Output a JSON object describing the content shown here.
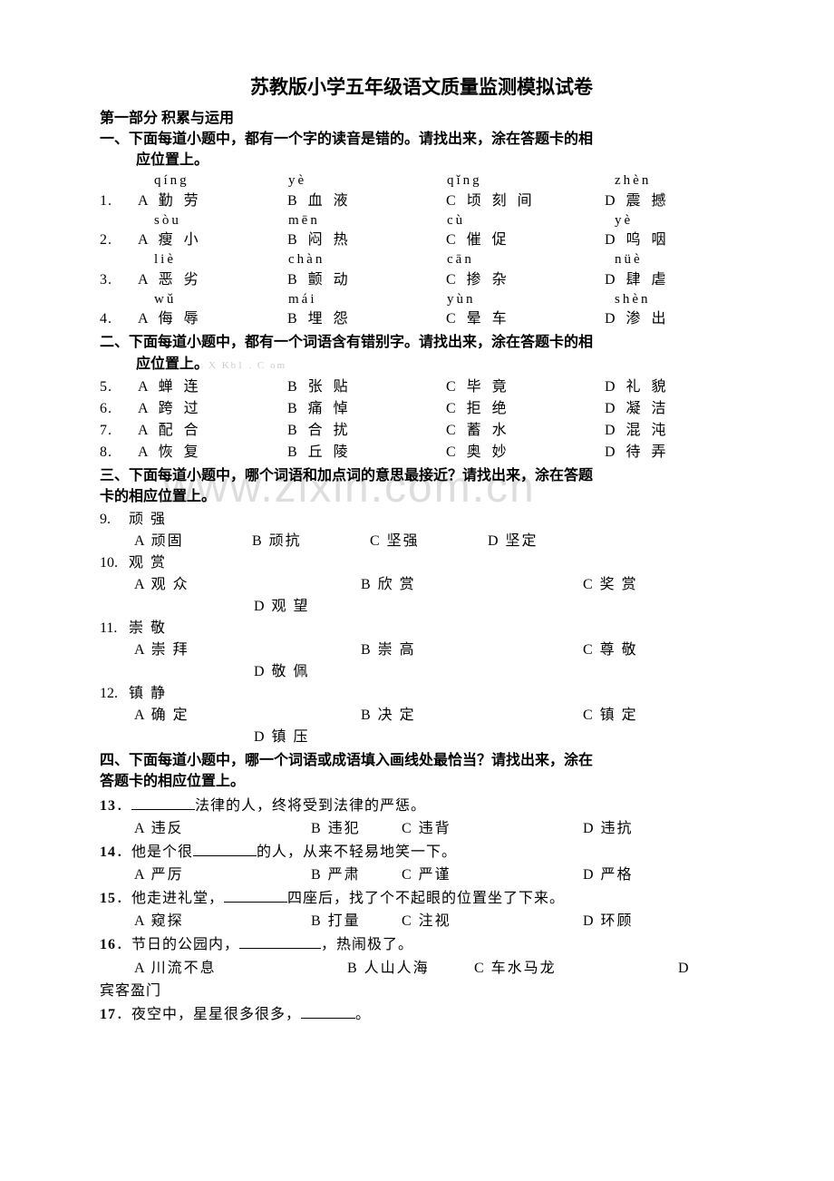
{
  "title": "苏教版小学五年级语文质量监测模拟试卷",
  "part1": "第一部分 积累与运用",
  "s1": {
    "instr_a": "一、下面每道小题中，都有一个字的读音是错的。请找出来，涂在答题卡的相",
    "instr_b": "应位置上。",
    "rows": [
      {
        "num": "1.",
        "p": [
          "qíng",
          "yè",
          "qǐng",
          "zhèn"
        ],
        "o": [
          "A 勤 劳",
          "B 血 液",
          "C 顷 刻 间",
          "D 震  撼"
        ]
      },
      {
        "num": "2.",
        "p": [
          "sòu",
          "mēn",
          "cù",
          "yè"
        ],
        "o": [
          "A 瘦 小",
          "B 闷 热",
          "C 催 促",
          "D 呜 咽"
        ]
      },
      {
        "num": "3.",
        "p": [
          "liè",
          "chàn",
          "cān",
          "nüè"
        ],
        "o": [
          "A 恶 劣",
          "B 颤  动",
          "C 掺 杂",
          "D 肆 虐"
        ]
      },
      {
        "num": "4.",
        "p": [
          "wǔ",
          "mái",
          "yùn",
          "shèn"
        ],
        "o": [
          "A 侮 辱",
          "B 埋 怨",
          "C 晕 车",
          "D 渗 出"
        ]
      }
    ]
  },
  "s2": {
    "instr_a": "二、下面每道小题中，都有一个词语含有错别字。请找出来，涂在答题卡的相",
    "instr_b": "应位置上。",
    "grey": "X Kb1 . C om",
    "rows": [
      {
        "num": "5.",
        "o": [
          "A 蝉 连",
          "B 张 贴",
          "C 毕 竟",
          "D 礼 貌"
        ]
      },
      {
        "num": "6.",
        "o": [
          "A 跨 过",
          "B 痛 悼",
          "C 拒 绝",
          "D 凝 洁"
        ]
      },
      {
        "num": "7.",
        "o": [
          "A 配 合",
          "B 合 扰",
          "C 蓄 水",
          "D 混 沌"
        ]
      },
      {
        "num": "8.",
        "o": [
          "A 恢 复",
          "B 丘 陵",
          "C 奥 妙",
          "D 待 弄"
        ]
      }
    ]
  },
  "s3": {
    "instr_a": "三、下面每道小题中，哪个词语和加点词的意思最接近？请找出来，涂在答题",
    "instr_b": "卡的相应位置上。",
    "items": [
      {
        "num": "9.",
        "word": "顽 强",
        "opts": [
          "A 顽固",
          "B 顽抗",
          "C 坚强",
          "D 坚定"
        ],
        "layout": "one"
      },
      {
        "num": "10.",
        "word": "观 赏",
        "opts": [
          "A 观 众",
          "B 欣 赏",
          "C 奖 赏",
          "D 观 望"
        ],
        "layout": "two"
      },
      {
        "num": "11.",
        "word": "崇 敬",
        "opts": [
          "A 崇 拜",
          "B 崇 高",
          "C 尊 敬",
          "D 敬 佩"
        ],
        "layout": "two"
      },
      {
        "num": "12.",
        "word": "镇 静",
        "opts": [
          "A 确 定",
          "B 决 定",
          "C 镇 定",
          "D 镇 压"
        ],
        "layout": "two"
      }
    ]
  },
  "s4": {
    "instr_a": "四、下面每道小题中，哪一个词语或成语填入画线处最恰当？请找出来，涂在",
    "instr_b": "答题卡的相应位置上。",
    "items": [
      {
        "num": "13",
        "pre": "．",
        "sent_a": "",
        "blank_w": 70,
        "sent_b": "法律的人，终将受到法律的严惩。",
        "opts": [
          "A 违反",
          "B 违犯",
          "C 违背",
          "D 违抗"
        ]
      },
      {
        "num": "14",
        "pre": "．",
        "sent_a": "他是个很",
        "blank_w": 70,
        "sent_b": "的人，从来不轻易地笑一下。",
        "opts": [
          "A 严厉",
          "B 严肃",
          "C 严谨",
          "D 严格"
        ]
      },
      {
        "num": "15",
        "pre": "．",
        "sent_a": "他走进礼堂，",
        "blank_w": 70,
        "sent_b": "四座后，找了个不起眼的位置坐了下来。",
        "opts": [
          "A 窥探",
          "B 打量",
          "C 注视",
          "D 环顾"
        ]
      },
      {
        "num": "16",
        "pre": "．",
        "sent_a": "节日的公园内，",
        "blank_w": 90,
        "sent_b": "，热闹极了。",
        "opts": [
          "A 川流不息",
          "B 人山人海",
          "C 车水马龙",
          "D 宾客盈门"
        ],
        "wide": true,
        "wrapD": true
      },
      {
        "num": "17",
        "pre": "．",
        "sent_a": "夜空中，星星很多很多，",
        "blank_w": 60,
        "sent_b": "。",
        "opts": null
      }
    ]
  }
}
